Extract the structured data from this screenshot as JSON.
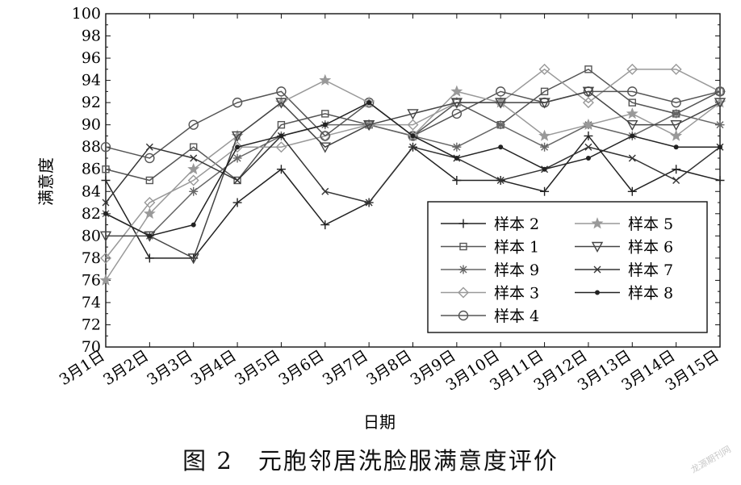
{
  "caption": "图 2　元胞邻居洗脸服满意度评价",
  "watermark": "龙源期刊网",
  "chart_data": {
    "type": "line",
    "title": "",
    "xlabel": "日期",
    "ylabel": "满意度",
    "ylim": [
      70,
      100
    ],
    "yticks": [
      70,
      72,
      74,
      76,
      78,
      80,
      82,
      84,
      86,
      88,
      90,
      92,
      94,
      96,
      98,
      100
    ],
    "grid": false,
    "legend_position": "bottom-right",
    "categories": [
      "3月1日",
      "3月2日",
      "3月3日",
      "3月4日",
      "3月5日",
      "3月6日",
      "3月7日",
      "3月8日",
      "3月9日",
      "3月10日",
      "3月11日",
      "3月12日",
      "3月13日",
      "3月14日",
      "3月15日"
    ],
    "series": [
      {
        "name": "样本 2",
        "marker": "plus",
        "color": "#222222",
        "values": [
          85,
          78,
          78,
          83,
          86,
          81,
          83,
          88,
          85,
          85,
          84,
          89,
          84,
          86,
          85
        ]
      },
      {
        "name": "样本 1",
        "marker": "square",
        "color": "#555555",
        "values": [
          86,
          85,
          88,
          85,
          90,
          91,
          90,
          89,
          92,
          90,
          93,
          95,
          92,
          91,
          93
        ]
      },
      {
        "name": "样本 9",
        "marker": "asterisk",
        "color": "#666666",
        "values": [
          82,
          80,
          84,
          87,
          89,
          90,
          90,
          89,
          88,
          90,
          88,
          90,
          89,
          91,
          90
        ]
      },
      {
        "name": "样本 3",
        "marker": "diamond",
        "color": "#999999",
        "values": [
          78,
          83,
          85,
          88,
          88,
          89,
          90,
          90,
          92,
          92,
          95,
          92,
          95,
          95,
          93
        ]
      },
      {
        "name": "样本 4",
        "marker": "circle",
        "color": "#555555",
        "values": [
          88,
          87,
          90,
          92,
          93,
          89,
          92,
          89,
          91,
          93,
          92,
          93,
          93,
          92,
          93
        ]
      },
      {
        "name": "样本 5",
        "marker": "star",
        "color": "#999999",
        "values": [
          76,
          82,
          86,
          89,
          92,
          94,
          92,
          89,
          93,
          92,
          89,
          90,
          91,
          89,
          92
        ]
      },
      {
        "name": "样本 6",
        "marker": "triangle-down",
        "color": "#444444",
        "values": [
          80,
          80,
          78,
          89,
          92,
          88,
          90,
          91,
          92,
          92,
          92,
          93,
          90,
          90,
          92
        ]
      },
      {
        "name": "样本 7",
        "marker": "x",
        "color": "#333333",
        "values": [
          83,
          88,
          87,
          85,
          89,
          84,
          83,
          88,
          87,
          85,
          86,
          88,
          87,
          85,
          88
        ]
      },
      {
        "name": "样本 8",
        "marker": "dot",
        "color": "#222222",
        "values": [
          82,
          80,
          81,
          88,
          89,
          90,
          92,
          89,
          87,
          88,
          86,
          87,
          89,
          88,
          88
        ]
      }
    ]
  }
}
